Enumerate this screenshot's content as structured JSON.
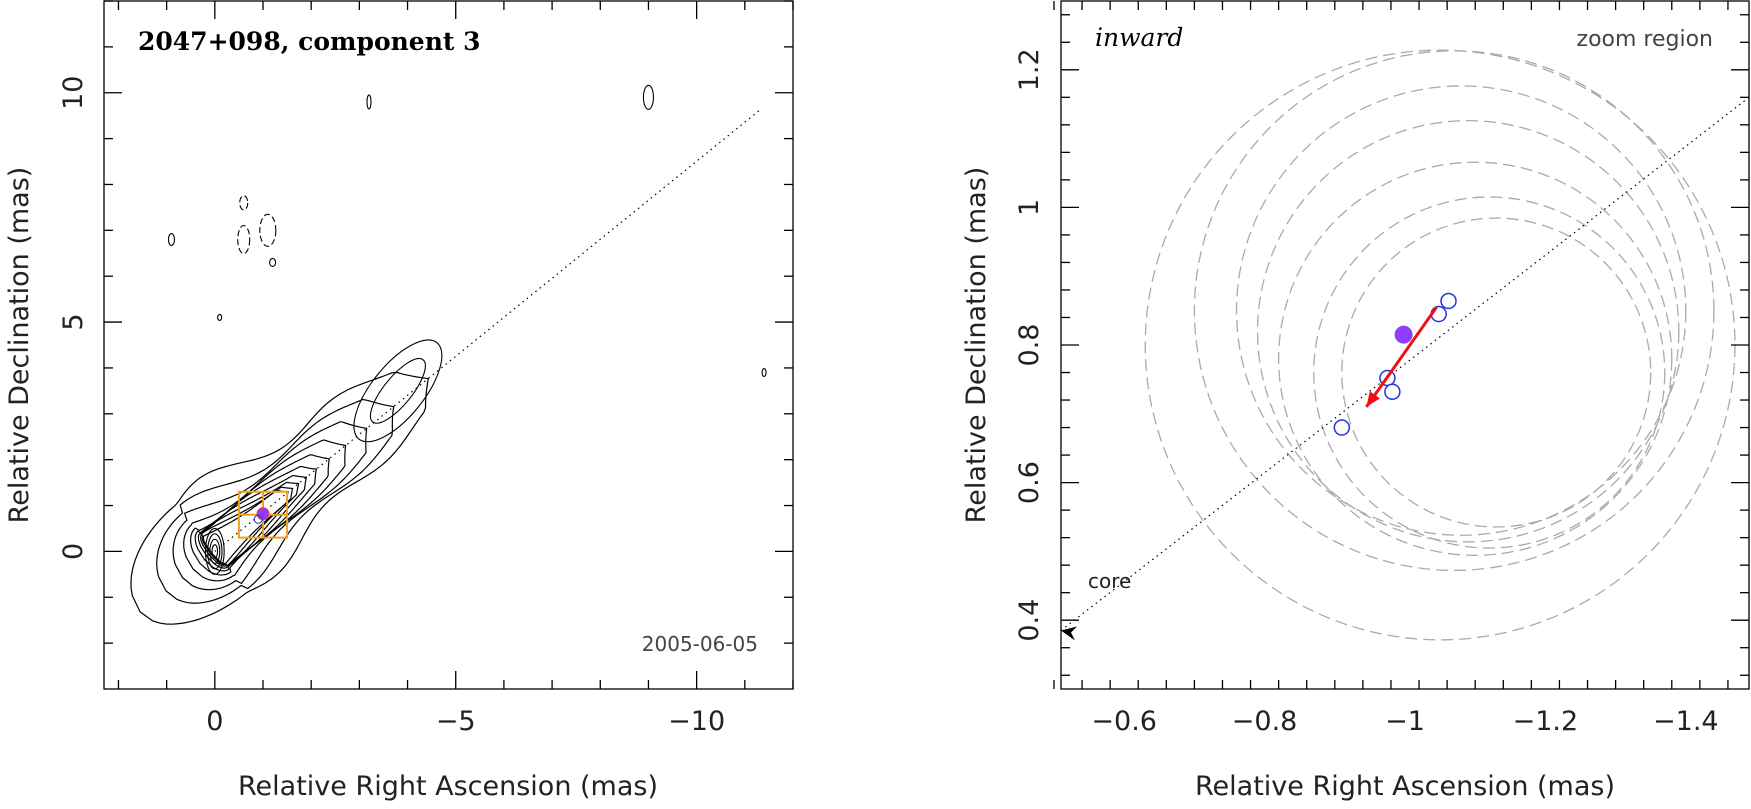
{
  "chart_data": [
    {
      "type": "scatter",
      "title": "2047+098, component 3",
      "date": "2005-06-05",
      "xlabel": "Relative Right Ascension (mas)",
      "ylabel": "Relative Declination (mas)",
      "xlim": [
        2.3,
        -12.0
      ],
      "ylim": [
        -3.0,
        12.0
      ],
      "x_ticks": [
        0,
        -5,
        -10
      ],
      "y_ticks": [
        0,
        5,
        10
      ],
      "x_tick_labels": [
        "0",
        "−5",
        "−10"
      ],
      "y_tick_labels": [
        "0",
        "5",
        "10"
      ],
      "core": [
        0,
        0
      ],
      "component_position": [
        -1.0,
        0.82
      ],
      "jet_axis_angle_deg": 39,
      "zoom_box": {
        "x": [
          -0.5,
          -1.5
        ],
        "y": [
          0.3,
          1.3
        ]
      },
      "contour_centers": [
        [
          0,
          0
        ],
        [
          -3.8,
          3.5
        ],
        [
          -3.2,
          9.8
        ],
        [
          -9.0,
          9.9
        ],
        [
          -1.1,
          7.0
        ],
        [
          -0.6,
          6.8
        ],
        [
          0.9,
          6.8
        ],
        [
          -0.6,
          7.6
        ],
        [
          -1.2,
          6.3
        ],
        [
          -0.1,
          5.1
        ],
        [
          -11.4,
          3.9
        ]
      ]
    },
    {
      "type": "scatter",
      "title": "inward",
      "annotation": "zoom region",
      "core_label": "core",
      "xlabel": "Relative Right Ascension (mas)",
      "ylabel": "Relative Declination (mas)",
      "xlim": [
        -0.51,
        -1.49
      ],
      "ylim": [
        0.3,
        1.3
      ],
      "x_ticks": [
        -0.6,
        -0.8,
        -1.0,
        -1.2,
        -1.4
      ],
      "y_ticks": [
        0.4,
        0.6,
        0.8,
        1.0,
        1.2
      ],
      "x_tick_labels": [
        "−0.6",
        "−0.8",
        "−1",
        "−1.2",
        "−1.4"
      ],
      "y_tick_labels": [
        "0.4",
        "0.6",
        "0.8",
        "1",
        "1.2"
      ],
      "mean_position": [
        -0.998,
        0.815
      ],
      "epoch_positions": [
        [
          -0.91,
          0.68
        ],
        [
          -0.975,
          0.752
        ],
        [
          -0.982,
          0.732
        ],
        [
          -1.048,
          0.845
        ],
        [
          -1.062,
          0.864
        ]
      ],
      "motion_arrow": {
        "from": [
          -1.045,
          0.855
        ],
        "to": [
          -0.945,
          0.71
        ]
      },
      "circles": [
        {
          "cx": -1.05,
          "cy": 0.8,
          "r": 0.42
        },
        {
          "cx": -1.07,
          "cy": 0.85,
          "r": 0.37
        },
        {
          "cx": -1.08,
          "cy": 0.85,
          "r": 0.32
        },
        {
          "cx": -1.09,
          "cy": 0.82,
          "r": 0.3
        },
        {
          "cx": -1.1,
          "cy": 0.78,
          "r": 0.28
        },
        {
          "cx": -1.12,
          "cy": 0.76,
          "r": 0.25
        },
        {
          "cx": -1.13,
          "cy": 0.76,
          "r": 0.22
        }
      ],
      "core_arrow_tip": [
        -0.51,
        0.385
      ]
    }
  ],
  "colors": {
    "contour": "#000000",
    "component_fill": "#8B3FFF",
    "epoch_marker": "#2233DD",
    "motion_arrow": "#EE1111",
    "zoom_box": "#F0A020",
    "circles": "#AAAAAA"
  }
}
